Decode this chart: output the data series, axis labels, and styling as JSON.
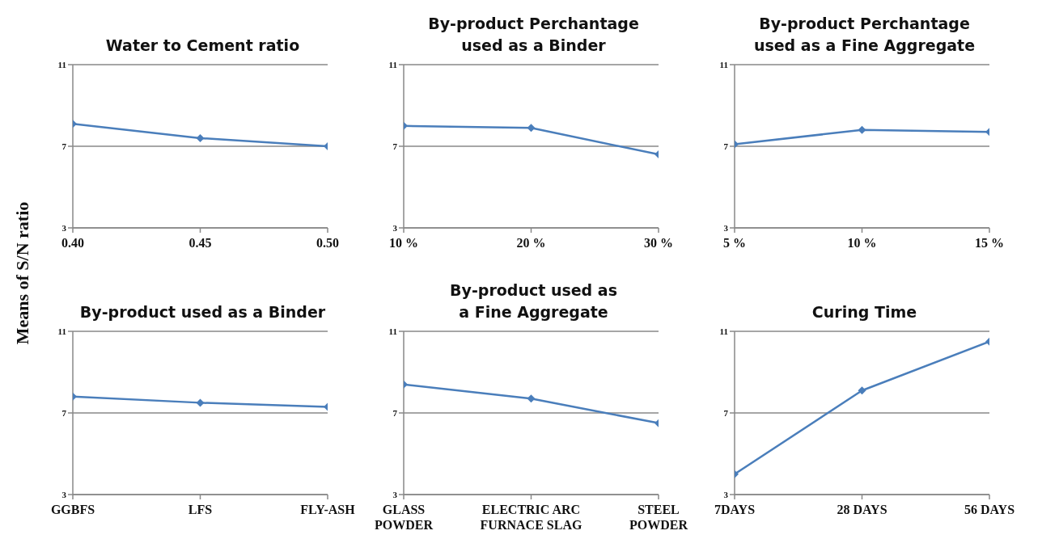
{
  "chart_data": [
    {
      "type": "line",
      "title": "Water to Cement ratio",
      "ylabel": "Means of S/N ratio",
      "categories": [
        "0.40",
        "0.45",
        "0.50"
      ],
      "values": [
        8.1,
        7.4,
        7.0
      ],
      "color": "#4a7ebb",
      "ylim": [
        3,
        11
      ],
      "yticks": [
        3,
        7,
        11
      ],
      "grid": "y",
      "marker": "diamond"
    },
    {
      "type": "line",
      "title": "By-product Perchantage used as a Binder",
      "categories": [
        "10 %",
        "20 %",
        "30 %"
      ],
      "values": [
        8.0,
        7.9,
        6.6
      ],
      "color": "#4a7ebb",
      "ylim": [
        3,
        11
      ],
      "yticks": [
        3,
        7,
        11
      ],
      "grid": "y",
      "marker": "diamond"
    },
    {
      "type": "line",
      "title": "By-product Perchantage used as a Fine Aggregate",
      "categories": [
        "5 %",
        "10 %",
        "15 %"
      ],
      "values": [
        7.1,
        7.8,
        7.7
      ],
      "color": "#4a7ebb",
      "ylim": [
        3,
        11
      ],
      "yticks": [
        3,
        7,
        11
      ],
      "grid": "y",
      "marker": "diamond"
    },
    {
      "type": "line",
      "title": "By-product used as a Binder",
      "categories": [
        "GGBFS",
        "LFS",
        "FLY-ASH"
      ],
      "values": [
        7.8,
        7.5,
        7.3
      ],
      "color": "#4a7ebb",
      "ylim": [
        3,
        11
      ],
      "yticks": [
        3,
        7,
        11
      ],
      "grid": "y",
      "marker": "diamond"
    },
    {
      "type": "line",
      "title": "By-product used as a Fine Aggregate",
      "categories": [
        "GLASS POWDER",
        "ELECTRIC ARC FURNACE SLAG",
        "STEEL POWDER"
      ],
      "values": [
        8.4,
        7.7,
        6.5
      ],
      "color": "#4a7ebb",
      "ylim": [
        3,
        11
      ],
      "yticks": [
        3,
        7,
        11
      ],
      "grid": "y",
      "marker": "diamond"
    },
    {
      "type": "line",
      "title": "Curing Time",
      "categories": [
        "7DAYS",
        "28 DAYS",
        "56 DAYS"
      ],
      "values": [
        4.0,
        8.1,
        10.5
      ],
      "color": "#4a7ebb",
      "ylim": [
        3,
        11
      ],
      "yticks": [
        3,
        7,
        11
      ],
      "grid": "y",
      "marker": "diamond"
    }
  ]
}
